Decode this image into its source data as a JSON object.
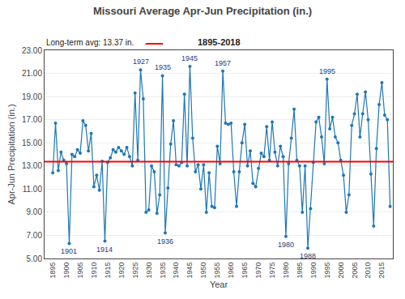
{
  "chart_data": {
    "type": "line",
    "title": "Missouri Average Apr-Jun Precipitation (in.)",
    "subtitle": "1895-2018",
    "xlabel": "Year",
    "ylabel": "Apr-Jun Precipitation (in.)",
    "marker": "circle",
    "x": [
      1895,
      1896,
      1897,
      1898,
      1899,
      1900,
      1901,
      1902,
      1903,
      1904,
      1905,
      1906,
      1907,
      1908,
      1909,
      1910,
      1911,
      1912,
      1913,
      1914,
      1915,
      1916,
      1917,
      1918,
      1919,
      1920,
      1921,
      1922,
      1923,
      1924,
      1925,
      1926,
      1927,
      1928,
      1929,
      1930,
      1931,
      1932,
      1933,
      1934,
      1935,
      1936,
      1937,
      1938,
      1939,
      1940,
      1941,
      1942,
      1943,
      1944,
      1945,
      1946,
      1947,
      1948,
      1949,
      1950,
      1951,
      1952,
      1953,
      1954,
      1955,
      1956,
      1957,
      1958,
      1959,
      1960,
      1961,
      1962,
      1963,
      1964,
      1965,
      1966,
      1967,
      1968,
      1969,
      1970,
      1971,
      1972,
      1973,
      1974,
      1975,
      1976,
      1977,
      1978,
      1979,
      1980,
      1981,
      1982,
      1983,
      1984,
      1985,
      1986,
      1987,
      1988,
      1989,
      1990,
      1991,
      1992,
      1993,
      1994,
      1995,
      1996,
      1997,
      1998,
      1999,
      2000,
      2001,
      2002,
      2003,
      2004,
      2005,
      2006,
      2007,
      2008,
      2009,
      2010,
      2011,
      2012,
      2013,
      2014,
      2015,
      2016,
      2017,
      2018
    ],
    "values": [
      12.4,
      16.7,
      12.6,
      14.2,
      13.5,
      13.2,
      6.3,
      14.0,
      13.8,
      14.4,
      14.1,
      16.9,
      16.5,
      14.3,
      15.8,
      11.2,
      12.2,
      10.9,
      13.4,
      6.5,
      13.3,
      13.7,
      14.4,
      14.2,
      14.6,
      14.3,
      14.0,
      14.6,
      13.8,
      13.0,
      19.3,
      13.5,
      21.3,
      18.8,
      9.0,
      9.2,
      13.0,
      12.5,
      8.9,
      10.5,
      20.8,
      7.2,
      11.1,
      14.9,
      16.9,
      13.1,
      13.0,
      13.3,
      19.2,
      13.0,
      21.6,
      15.4,
      12.5,
      13.1,
      11.0,
      13.1,
      9.0,
      12.4,
      9.5,
      9.4,
      14.7,
      13.2,
      21.2,
      16.7,
      16.6,
      16.7,
      12.5,
      9.5,
      12.5,
      15.0,
      16.6,
      13.0,
      14.3,
      11.5,
      11.2,
      12.8,
      14.1,
      13.8,
      16.4,
      13.5,
      16.8,
      14.2,
      13.0,
      14.7,
      13.8,
      6.9,
      13.2,
      15.4,
      17.9,
      13.5,
      13.0,
      9.0,
      13.0,
      5.9,
      9.3,
      13.3,
      16.8,
      17.2,
      15.5,
      13.2,
      20.5,
      16.2,
      17.2,
      15.5,
      15.0,
      13.5,
      12.2,
      9.0,
      10.5,
      16.5,
      17.5,
      19.2,
      15.5,
      17.5,
      19.4,
      17.0,
      12.3,
      7.8,
      14.5,
      18.3,
      20.2,
      17.4,
      17.0,
      9.5
    ],
    "xlim": [
      1892,
      2019
    ],
    "xticks": [
      1895,
      1900,
      1905,
      1910,
      1915,
      1920,
      1925,
      1930,
      1935,
      1940,
      1945,
      1950,
      1955,
      1960,
      1965,
      1970,
      1975,
      1980,
      1985,
      1990,
      1995,
      2000,
      2005,
      2010,
      2015
    ],
    "ylim": [
      5.0,
      23.0
    ],
    "yticks": [
      {
        "value": 5.0,
        "label": "5.00"
      },
      {
        "value": 7.0,
        "label": "7.00"
      },
      {
        "value": 9.0,
        "label": "9.00"
      },
      {
        "value": 11.0,
        "label": "11.00"
      },
      {
        "value": 13.0,
        "label": "13.00"
      },
      {
        "value": 15.0,
        "label": "15.00"
      },
      {
        "value": 17.0,
        "label": "17.00"
      },
      {
        "value": 19.0,
        "label": "19.00"
      },
      {
        "value": 21.0,
        "label": "21.00"
      },
      {
        "value": 23.0,
        "label": "23.00"
      }
    ],
    "grid": "y",
    "reference_line": {
      "value": 13.37,
      "label": "Long-term avg: 13.37 in.",
      "color": "#FF0000"
    },
    "annotations": [
      {
        "text": "1901",
        "x": 1901,
        "y": 6.3
      },
      {
        "text": "1914",
        "x": 1914,
        "y": 6.5
      },
      {
        "text": "1927",
        "x": 1927,
        "y": 21.3
      },
      {
        "text": "1935",
        "x": 1935,
        "y": 20.8
      },
      {
        "text": "1936",
        "x": 1936,
        "y": 7.2
      },
      {
        "text": "1945",
        "x": 1945,
        "y": 21.6
      },
      {
        "text": "1957",
        "x": 1957,
        "y": 21.2
      },
      {
        "text": "1980",
        "x": 1980,
        "y": 6.9
      },
      {
        "text": "1988",
        "x": 1988,
        "y": 5.9
      },
      {
        "text": "1995",
        "x": 1995,
        "y": 20.5
      }
    ]
  }
}
